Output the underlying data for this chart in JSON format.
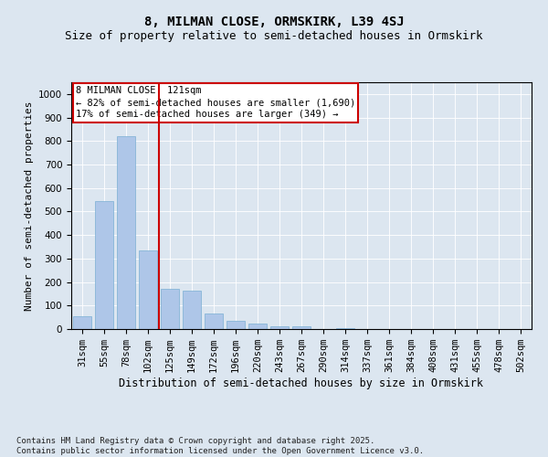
{
  "title": "8, MILMAN CLOSE, ORMSKIRK, L39 4SJ",
  "subtitle": "Size of property relative to semi-detached houses in Ormskirk",
  "xlabel": "Distribution of semi-detached houses by size in Ormskirk",
  "ylabel": "Number of semi-detached properties",
  "categories": [
    "31sqm",
    "55sqm",
    "78sqm",
    "102sqm",
    "125sqm",
    "149sqm",
    "172sqm",
    "196sqm",
    "220sqm",
    "243sqm",
    "267sqm",
    "290sqm",
    "314sqm",
    "337sqm",
    "361sqm",
    "384sqm",
    "408sqm",
    "431sqm",
    "455sqm",
    "478sqm",
    "502sqm"
  ],
  "values": [
    55,
    545,
    820,
    335,
    170,
    165,
    65,
    35,
    25,
    10,
    10,
    0,
    5,
    0,
    0,
    0,
    0,
    0,
    0,
    0,
    0
  ],
  "bar_color": "#aec6e8",
  "bar_edge_color": "#7aafd4",
  "vline_x_index": 3.5,
  "vline_color": "#cc0000",
  "annotation_text": "8 MILMAN CLOSE: 121sqm\n← 82% of semi-detached houses are smaller (1,690)\n17% of semi-detached houses are larger (349) →",
  "annotation_box_color": "#ffffff",
  "annotation_box_edge_color": "#cc0000",
  "ylim": [
    0,
    1050
  ],
  "yticks": [
    0,
    100,
    200,
    300,
    400,
    500,
    600,
    700,
    800,
    900,
    1000
  ],
  "background_color": "#dce6f0",
  "plot_bg_color": "#dce6f0",
  "footer": "Contains HM Land Registry data © Crown copyright and database right 2025.\nContains public sector information licensed under the Open Government Licence v3.0.",
  "title_fontsize": 10,
  "subtitle_fontsize": 9,
  "xlabel_fontsize": 8.5,
  "ylabel_fontsize": 8,
  "tick_fontsize": 7.5,
  "annotation_fontsize": 7.5,
  "footer_fontsize": 6.5
}
